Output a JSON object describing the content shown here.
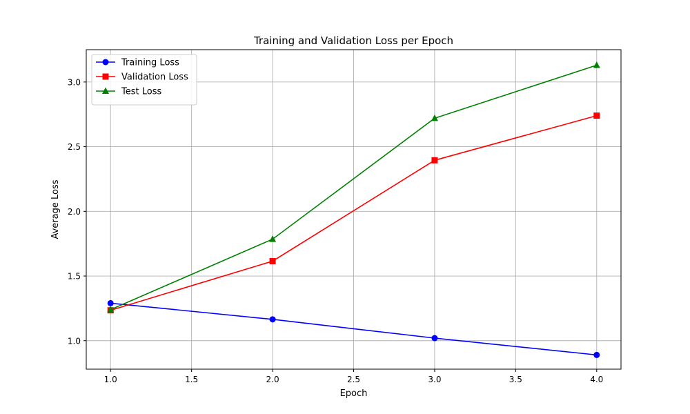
{
  "chart_data": {
    "type": "line",
    "title": "Training and Validation Loss per Epoch",
    "xlabel": "Epoch",
    "ylabel": "Average Loss",
    "x": [
      1,
      2,
      3,
      4
    ],
    "xlim": [
      0.85,
      4.15
    ],
    "ylim": [
      0.78,
      3.25
    ],
    "xticks": [
      1.0,
      1.5,
      2.0,
      2.5,
      3.0,
      3.5,
      4.0
    ],
    "xtick_labels": [
      "1.0",
      "1.5",
      "2.0",
      "2.5",
      "3.0",
      "3.5",
      "4.0"
    ],
    "yticks": [
      1.0,
      1.5,
      2.0,
      2.5,
      3.0
    ],
    "ytick_labels": [
      "1.0",
      "1.5",
      "2.0",
      "2.5",
      "3.0"
    ],
    "grid": true,
    "legend_position": "top-left",
    "series": [
      {
        "name": "Training Loss",
        "values": [
          1.29,
          1.165,
          1.02,
          0.89
        ],
        "color": "#0000ff",
        "marker": "circle"
      },
      {
        "name": "Validation Loss",
        "values": [
          1.235,
          1.615,
          2.395,
          2.74
        ],
        "color": "#ff0000",
        "marker": "square"
      },
      {
        "name": "Test Loss",
        "values": [
          1.24,
          1.785,
          2.72,
          3.13
        ],
        "color": "#008000",
        "marker": "triangle"
      }
    ]
  }
}
